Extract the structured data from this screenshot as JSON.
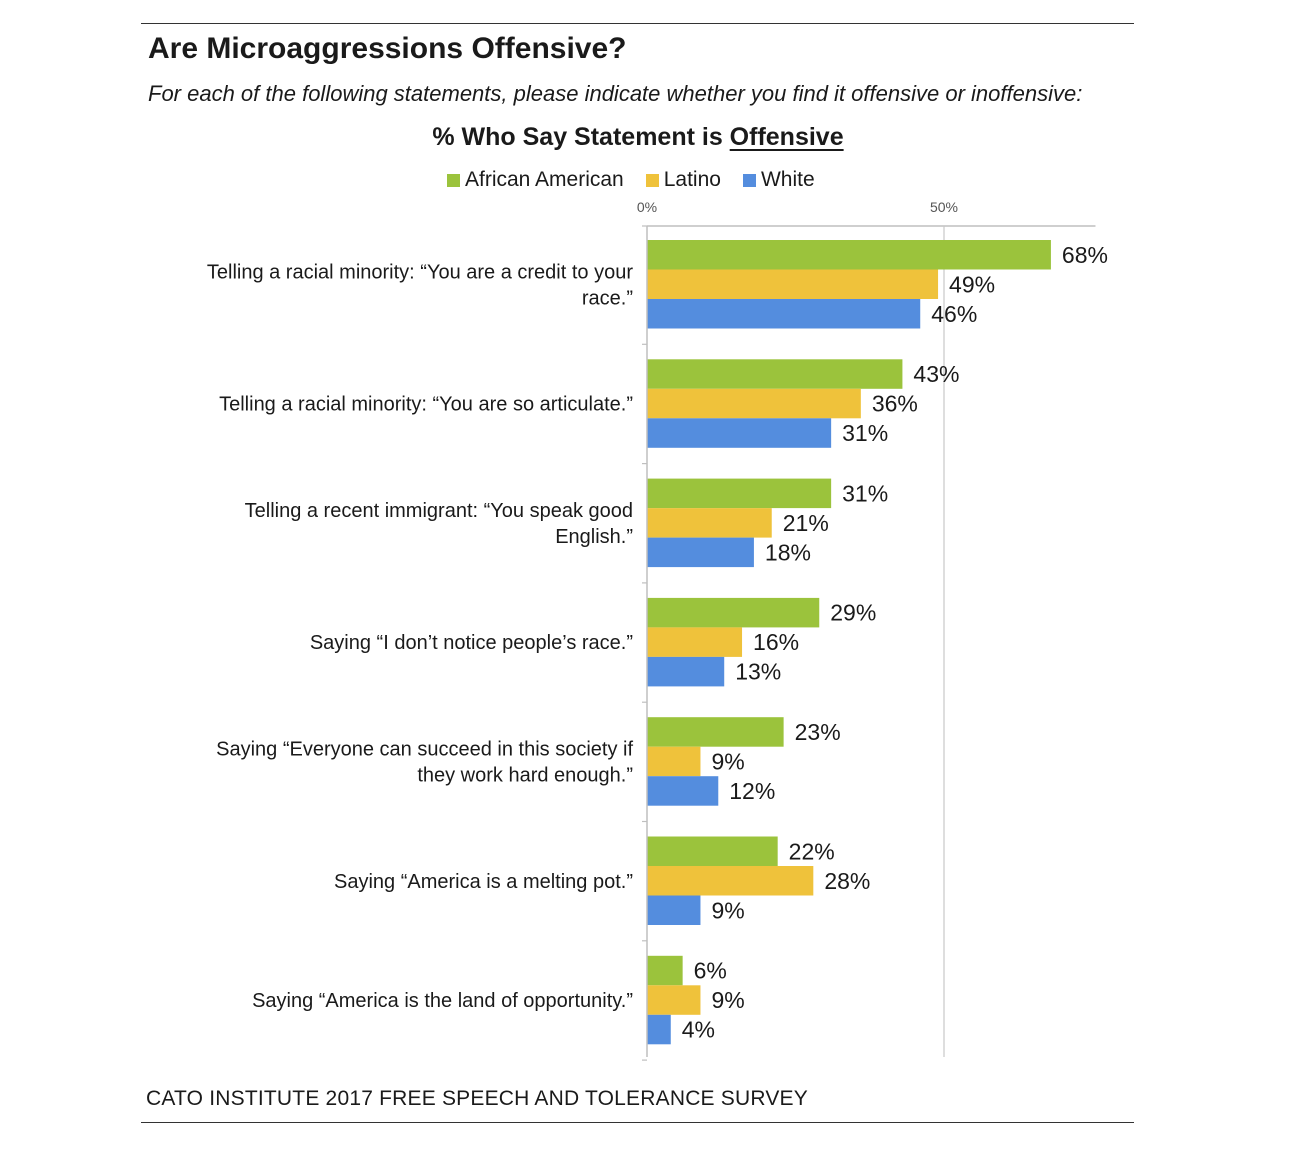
{
  "header": {
    "title": "Are Microaggressions Offensive?",
    "subtitle": "For each of the following statements, please indicate whether you find it offensive or inoffensive:"
  },
  "footer": {
    "source": "CATO INSTITUTE 2017 FREE SPEECH AND TOLERANCE SURVEY"
  },
  "chart_data": {
    "type": "bar",
    "orientation": "horizontal",
    "title_prefix": "% Who Say Statement is ",
    "title_emphasis": "Offensive",
    "xlim": [
      0,
      75
    ],
    "xticks": [
      {
        "value": 0,
        "label": "0%"
      },
      {
        "value": 50,
        "label": "50%"
      }
    ],
    "grid": true,
    "legend_position": "top",
    "categories": [
      [
        "Telling a racial minority: “You are a credit to your",
        "race.”"
      ],
      [
        "Telling a racial minority: “You are so articulate.”"
      ],
      [
        "Telling a recent immigrant: “You speak good",
        "English.”"
      ],
      [
        "Saying “I don’t notice people’s race.”"
      ],
      [
        "Saying “Everyone can succeed in this society if",
        "they work hard enough.”"
      ],
      [
        "Saying “America is a melting pot.”"
      ],
      [
        "Saying “America is the land of opportunity.”"
      ]
    ],
    "series": [
      {
        "name": "African American",
        "color": "#9BC33C",
        "values": [
          68,
          43,
          31,
          29,
          23,
          22,
          6
        ],
        "labels": [
          "68%",
          "43%",
          "31%",
          "29%",
          "23%",
          "22%",
          "6%"
        ]
      },
      {
        "name": "Latino",
        "color": "#EFC23B",
        "values": [
          49,
          36,
          21,
          16,
          9,
          28,
          9
        ],
        "labels": [
          "49%",
          "36%",
          "21%",
          "16%",
          "9%",
          "28%",
          "9%"
        ]
      },
      {
        "name": "White",
        "color": "#548DDE",
        "values": [
          46,
          31,
          18,
          13,
          12,
          9,
          4
        ],
        "labels": [
          "46%",
          "31%",
          "18%",
          "13%",
          "12%",
          "9%",
          "4%"
        ]
      }
    ]
  }
}
